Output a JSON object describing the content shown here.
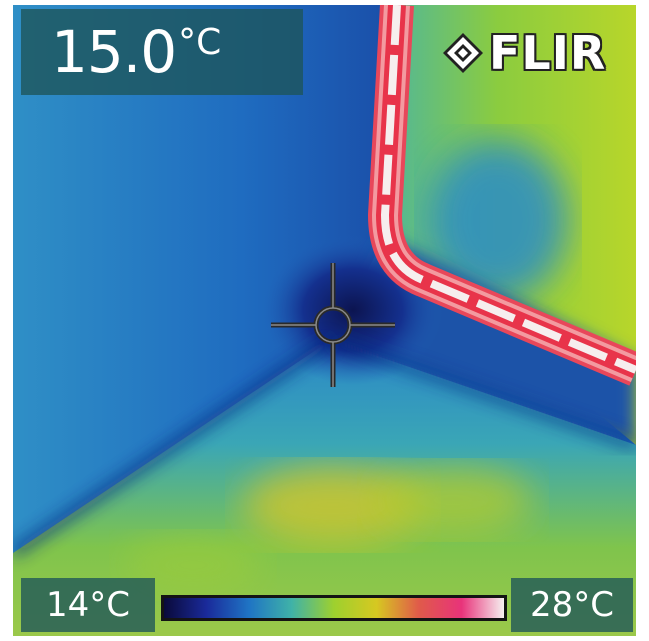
{
  "spot": {
    "value": "15.0",
    "unit": "°C"
  },
  "brand": {
    "name": "FLIR"
  },
  "scale": {
    "min": "14°C",
    "max": "28°C"
  },
  "palette": [
    "#0a0a3a",
    "#1a2a9a",
    "#1f74c4",
    "#3fb2a8",
    "#9ed02e",
    "#d6c821",
    "#e05a4a",
    "#e8337a",
    "#f6f0f0"
  ],
  "icons": {
    "crosshair": "crosshair-icon",
    "logo": "flir-logo-icon"
  }
}
